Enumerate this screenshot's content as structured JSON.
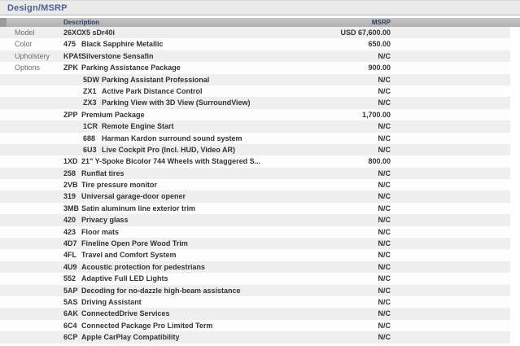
{
  "title": "Design/MSRP",
  "colors": {
    "title_text": "#4d6290",
    "header_bar": "#b8b8b8",
    "header_text": "#2f4164",
    "stripe": "#efefef",
    "body_text": "#333333",
    "label_text": "#6e6e6e"
  },
  "table": {
    "headers": {
      "description": "Description",
      "msrp": "MSRP"
    },
    "rows": [
      {
        "label": "Model",
        "code": "26XO",
        "desc": "X5 sDr40i",
        "msrp": "USD 67,600.00",
        "level": 0
      },
      {
        "label": "Color",
        "code": "475",
        "desc": "Black Sapphire Metallic",
        "msrp": "650.00",
        "level": 0
      },
      {
        "label": "Upholstery",
        "code": "KPA9",
        "desc": "Silverstone Sensafin",
        "msrp": "N/C",
        "level": 0
      },
      {
        "label": "Options",
        "code": "ZPK",
        "desc": "Parking Assistance Package",
        "msrp": "900.00",
        "level": 0
      },
      {
        "label": "",
        "code": "5DW",
        "desc": "Parking Assistant Professional",
        "msrp": "N/C",
        "level": 1
      },
      {
        "label": "",
        "code": "ZX1",
        "desc": "Active Park Distance Control",
        "msrp": "N/C",
        "level": 1
      },
      {
        "label": "",
        "code": "ZX3",
        "desc": "Parking View with 3D View (SurroundView)",
        "msrp": "N/C",
        "level": 1
      },
      {
        "label": "",
        "code": "ZPP",
        "desc": "Premium Package",
        "msrp": "1,700.00",
        "level": 0
      },
      {
        "label": "",
        "code": "1CR",
        "desc": "Remote Engine Start",
        "msrp": "N/C",
        "level": 1
      },
      {
        "label": "",
        "code": "688",
        "desc": "Harman Kardon surround sound system",
        "msrp": "N/C",
        "level": 1
      },
      {
        "label": "",
        "code": "6U3",
        "desc": "Live Cockpit Pro (Incl. HUD, Video AR)",
        "msrp": "N/C",
        "level": 1
      },
      {
        "label": "",
        "code": "1XD",
        "desc": "21\" Y-Spoke Bicolor 744 Wheels with Staggered S...",
        "msrp": "800.00",
        "level": 0
      },
      {
        "label": "",
        "code": "258",
        "desc": "Runflat tires",
        "msrp": "N/C",
        "level": 0
      },
      {
        "label": "",
        "code": "2VB",
        "desc": "Tire pressure monitor",
        "msrp": "N/C",
        "level": 0
      },
      {
        "label": "",
        "code": "319",
        "desc": "Universal garage-door opener",
        "msrp": "N/C",
        "level": 0
      },
      {
        "label": "",
        "code": "3MB",
        "desc": "Satin aluminum line exterior trim",
        "msrp": "N/C",
        "level": 0
      },
      {
        "label": "",
        "code": "420",
        "desc": "Privacy glass",
        "msrp": "N/C",
        "level": 0
      },
      {
        "label": "",
        "code": "423",
        "desc": "Floor mats",
        "msrp": "N/C",
        "level": 0
      },
      {
        "label": "",
        "code": "4D7",
        "desc": "Fineline Open Pore Wood Trim",
        "msrp": "N/C",
        "level": 0
      },
      {
        "label": "",
        "code": "4FL",
        "desc": "Travel and Comfort System",
        "msrp": "N/C",
        "level": 0
      },
      {
        "label": "",
        "code": "4U9",
        "desc": "Acoustic protection for pedestrians",
        "msrp": "N/C",
        "level": 0
      },
      {
        "label": "",
        "code": "552",
        "desc": "Adaptive Full LED Lights",
        "msrp": "N/C",
        "level": 0
      },
      {
        "label": "",
        "code": "5AP",
        "desc": "Decoding for no-dazzle high-beam assistance",
        "msrp": "N/C",
        "level": 0
      },
      {
        "label": "",
        "code": "5AS",
        "desc": "Driving Assistant",
        "msrp": "N/C",
        "level": 0
      },
      {
        "label": "",
        "code": "6AK",
        "desc": "ConnectedDrive Services",
        "msrp": "N/C",
        "level": 0
      },
      {
        "label": "",
        "code": "6C4",
        "desc": "Connected Package Pro Limited Term",
        "msrp": "N/C",
        "level": 0
      },
      {
        "label": "",
        "code": "6CP",
        "desc": "Apple CarPlay Compatibility",
        "msrp": "N/C",
        "level": 0
      }
    ]
  }
}
